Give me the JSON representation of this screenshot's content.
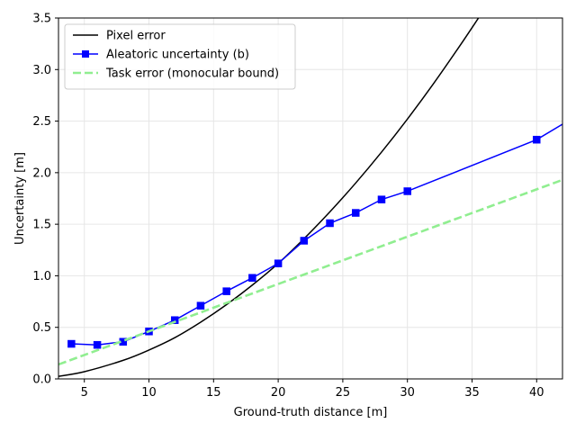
{
  "chart_data": {
    "type": "line",
    "title": "",
    "xlabel": "Ground-truth distance [m]",
    "ylabel": "Uncertainty [m]",
    "xlim": [
      3,
      42
    ],
    "ylim": [
      0,
      3.5
    ],
    "xticks": [
      5,
      10,
      15,
      20,
      25,
      30,
      35,
      40
    ],
    "yticks": [
      0.0,
      0.5,
      1.0,
      1.5,
      2.0,
      2.5,
      3.0,
      3.5
    ],
    "grid": true,
    "legend_position": "top-left",
    "series": [
      {
        "name": "Pixel error",
        "style": "solid",
        "color": "#000000",
        "marker": "none",
        "x": [
          3,
          5,
          8,
          10,
          12,
          14,
          16,
          18,
          20,
          22,
          24,
          26,
          28,
          30,
          32,
          34,
          35.5
        ],
        "y": [
          0.025,
          0.07,
          0.18,
          0.28,
          0.4,
          0.55,
          0.72,
          0.91,
          1.12,
          1.36,
          1.62,
          1.9,
          2.2,
          2.52,
          2.86,
          3.22,
          3.5
        ]
      },
      {
        "name": "Aleatoric uncertainty (b)",
        "style": "solid",
        "color": "#0000ff",
        "marker": "square",
        "x": [
          4,
          6,
          8,
          10,
          12,
          14,
          16,
          18,
          20,
          22,
          24,
          26,
          28,
          30,
          40
        ],
        "y": [
          0.34,
          0.33,
          0.36,
          0.46,
          0.57,
          0.71,
          0.85,
          0.98,
          1.12,
          1.34,
          1.51,
          1.61,
          1.74,
          1.82,
          2.32
        ],
        "extend_to": [
          42,
          2.47
        ]
      },
      {
        "name": "Task error (monocular bound)",
        "style": "dashed",
        "color": "#90ee90",
        "marker": "none",
        "x": [
          3,
          42
        ],
        "y": [
          0.14,
          1.93
        ]
      }
    ]
  }
}
